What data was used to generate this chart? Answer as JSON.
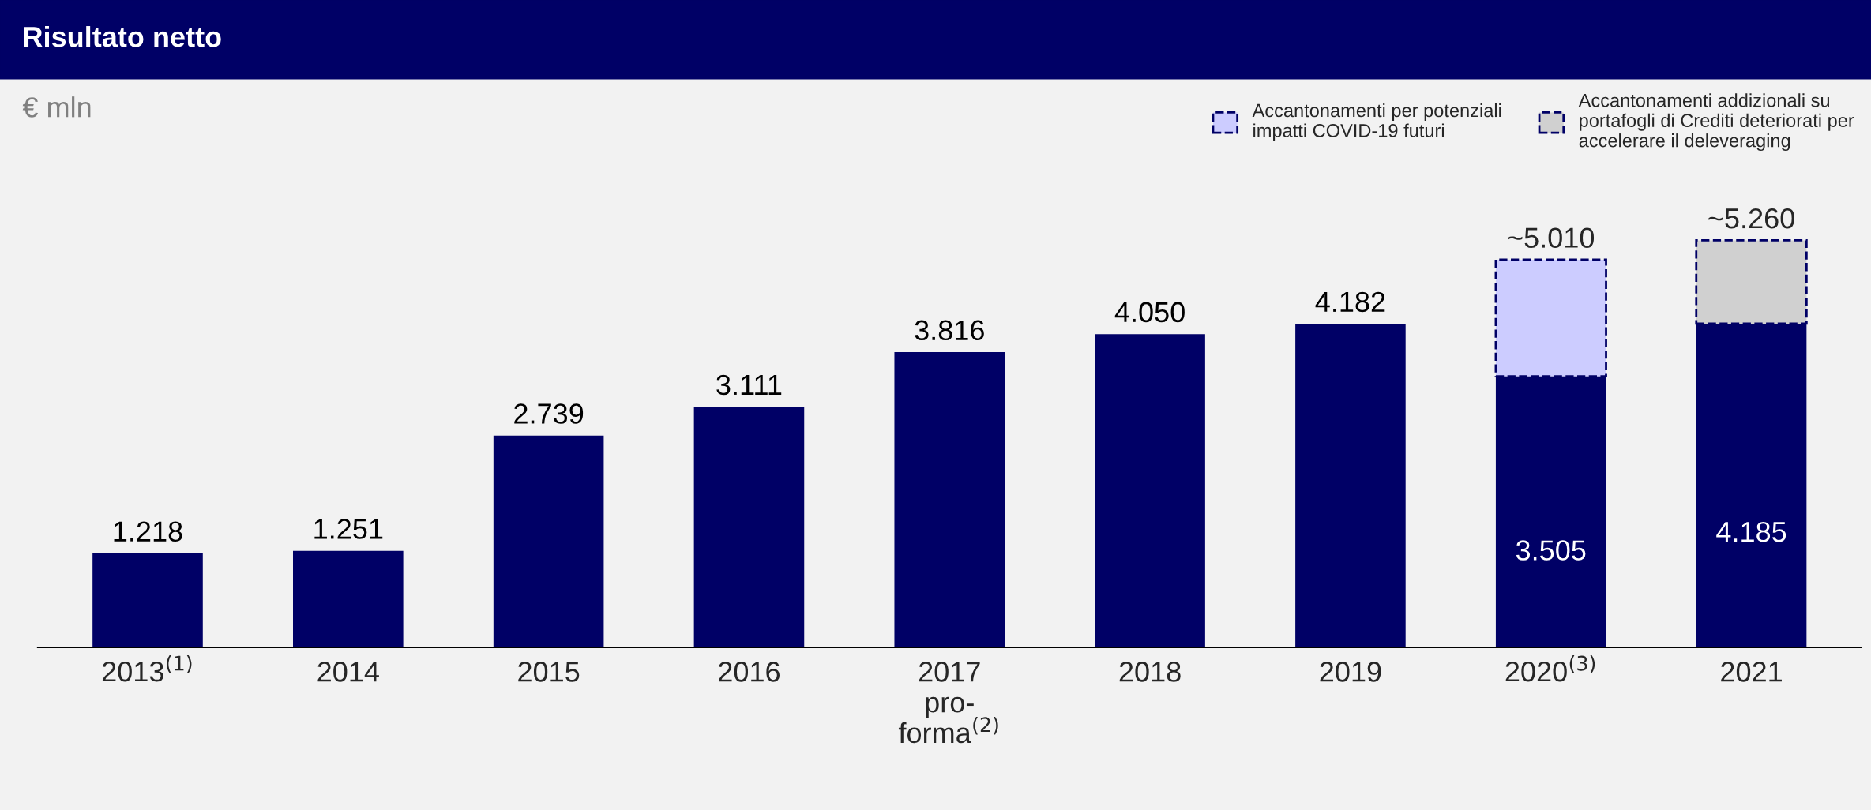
{
  "chart_data": {
    "type": "bar",
    "title": "Risultato netto",
    "ylabel": "€ mln",
    "categories": [
      "2013$^{(1)}$",
      "2014",
      "2015",
      "2016",
      "2017\npro-\nforma$^{(2)}$",
      "2018",
      "2019",
      "2020$^{(3)}$",
      "2021"
    ],
    "stacked": true,
    "tick_labels": "x",
    "grid": false,
    "legend": "top right",
    "series": [
      {
        "color": "#000066",
        "values": [
          1218,
          1251,
          2739,
          3111,
          3816,
          4050,
          4182,
          3505,
          4185
        ],
        "value_labels": [
          "1.218",
          "1.251",
          "2.739",
          "3.111",
          "3.816",
          "4.050",
          "4.182",
          "3.505",
          "4.185"
        ]
      },
      {
        "name": "Accantonamenti per potenziali\nimpatti COVID-19 futuri",
        "color": "#ccccff",
        "line_style": "dashed",
        "values": [
          null,
          null,
          null,
          null,
          null,
          null,
          null,
          1505,
          null
        ]
      },
      {
        "name": "Accantonamenti addizionali su\nportafogli di Crediti deteriorati per\naccelerare il deleveraging",
        "color": "#d0d0d0",
        "line_style": "dashed",
        "values": [
          null,
          null,
          null,
          null,
          null,
          null,
          null,
          null,
          1075
        ]
      }
    ],
    "totals": [
      null,
      null,
      null,
      null,
      null,
      null,
      null,
      "~5.010",
      "~5.260"
    ]
  }
}
